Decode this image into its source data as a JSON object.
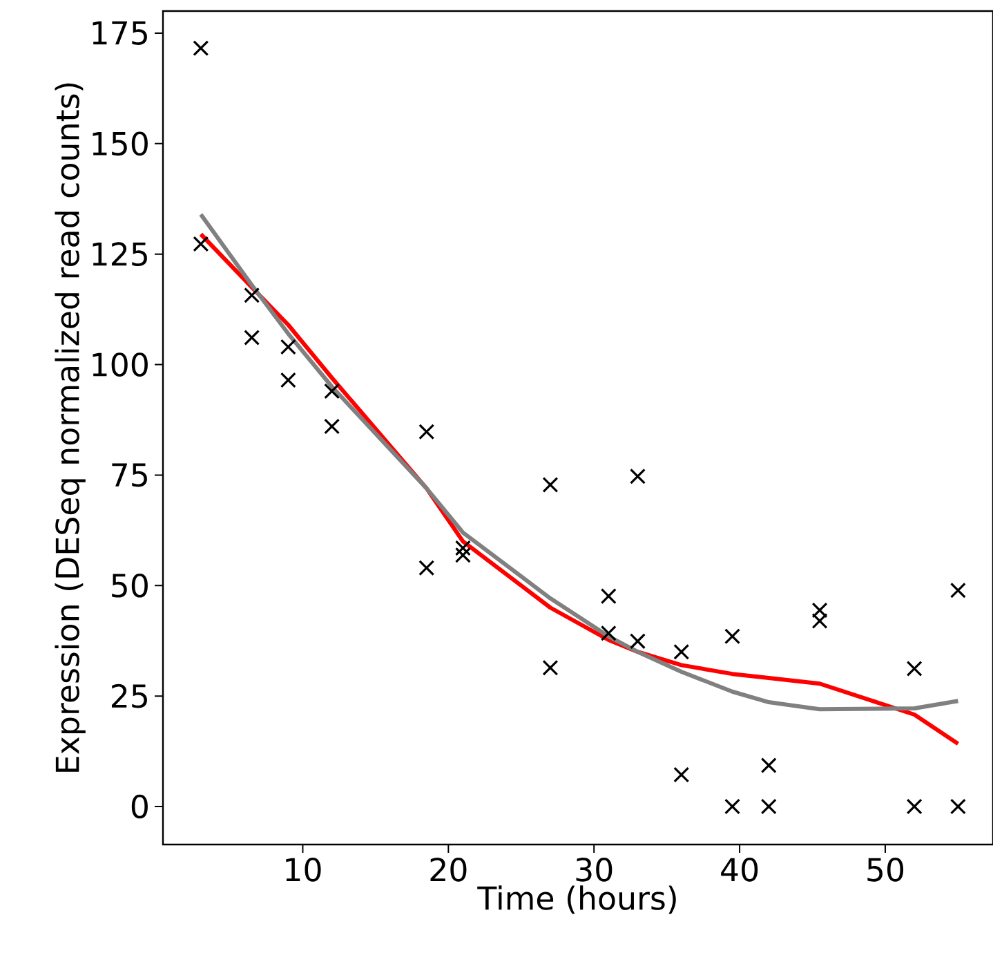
{
  "chart_data": {
    "type": "scatter",
    "xlabel": "Time (hours)",
    "ylabel": "Expression (DESeq normalized read counts)",
    "xlim": [
      0.4,
      57.4
    ],
    "ylim": [
      -8.6,
      180
    ],
    "xticks": [
      10,
      20,
      30,
      40,
      50
    ],
    "yticks": [
      0,
      25,
      50,
      75,
      100,
      125,
      150,
      175
    ],
    "grid": false,
    "series": [
      {
        "color": "#000000",
        "marker": "cross",
        "x": [
          3,
          3,
          6.5,
          6.5,
          9,
          9,
          12,
          12,
          18.5,
          18.5,
          21,
          21,
          27,
          27,
          31,
          31,
          33,
          33,
          36,
          36,
          39.5,
          39.5,
          42,
          42,
          45.5,
          45.5,
          52,
          52,
          55,
          55
        ],
        "values": [
          171.6,
          127.3,
          115.7,
          106.1,
          104.0,
          96.5,
          94.0,
          86.0,
          84.8,
          54.0,
          58.5,
          56.9,
          72.8,
          31.4,
          47.6,
          39.2,
          74.7,
          37.4,
          35.0,
          7.2,
          38.5,
          0,
          9.3,
          0,
          44.4,
          42.0,
          31.2,
          0,
          48.9,
          0
        ]
      },
      {
        "type": "line",
        "color": "#ff0000",
        "line_style": "solid",
        "x": [
          3,
          6.5,
          9,
          12,
          18.5,
          21,
          27,
          31,
          33,
          36,
          39.5,
          42,
          45.5,
          52,
          55
        ],
        "values": [
          129.5,
          117.5,
          109,
          97,
          72,
          60,
          45,
          37.7,
          35,
          32,
          30,
          29.1,
          27.8,
          20.8,
          14.2
        ]
      },
      {
        "type": "line",
        "color": "#808080",
        "line_style": "solid",
        "x": [
          3,
          6.5,
          9,
          12,
          18.5,
          21,
          27,
          31,
          33,
          36,
          39.5,
          42,
          45.5,
          52,
          55
        ],
        "values": [
          134,
          118,
          107,
          95,
          72,
          62,
          47.1,
          38.5,
          35,
          30.5,
          26,
          23.6,
          22,
          22.2,
          23.9
        ]
      }
    ]
  }
}
